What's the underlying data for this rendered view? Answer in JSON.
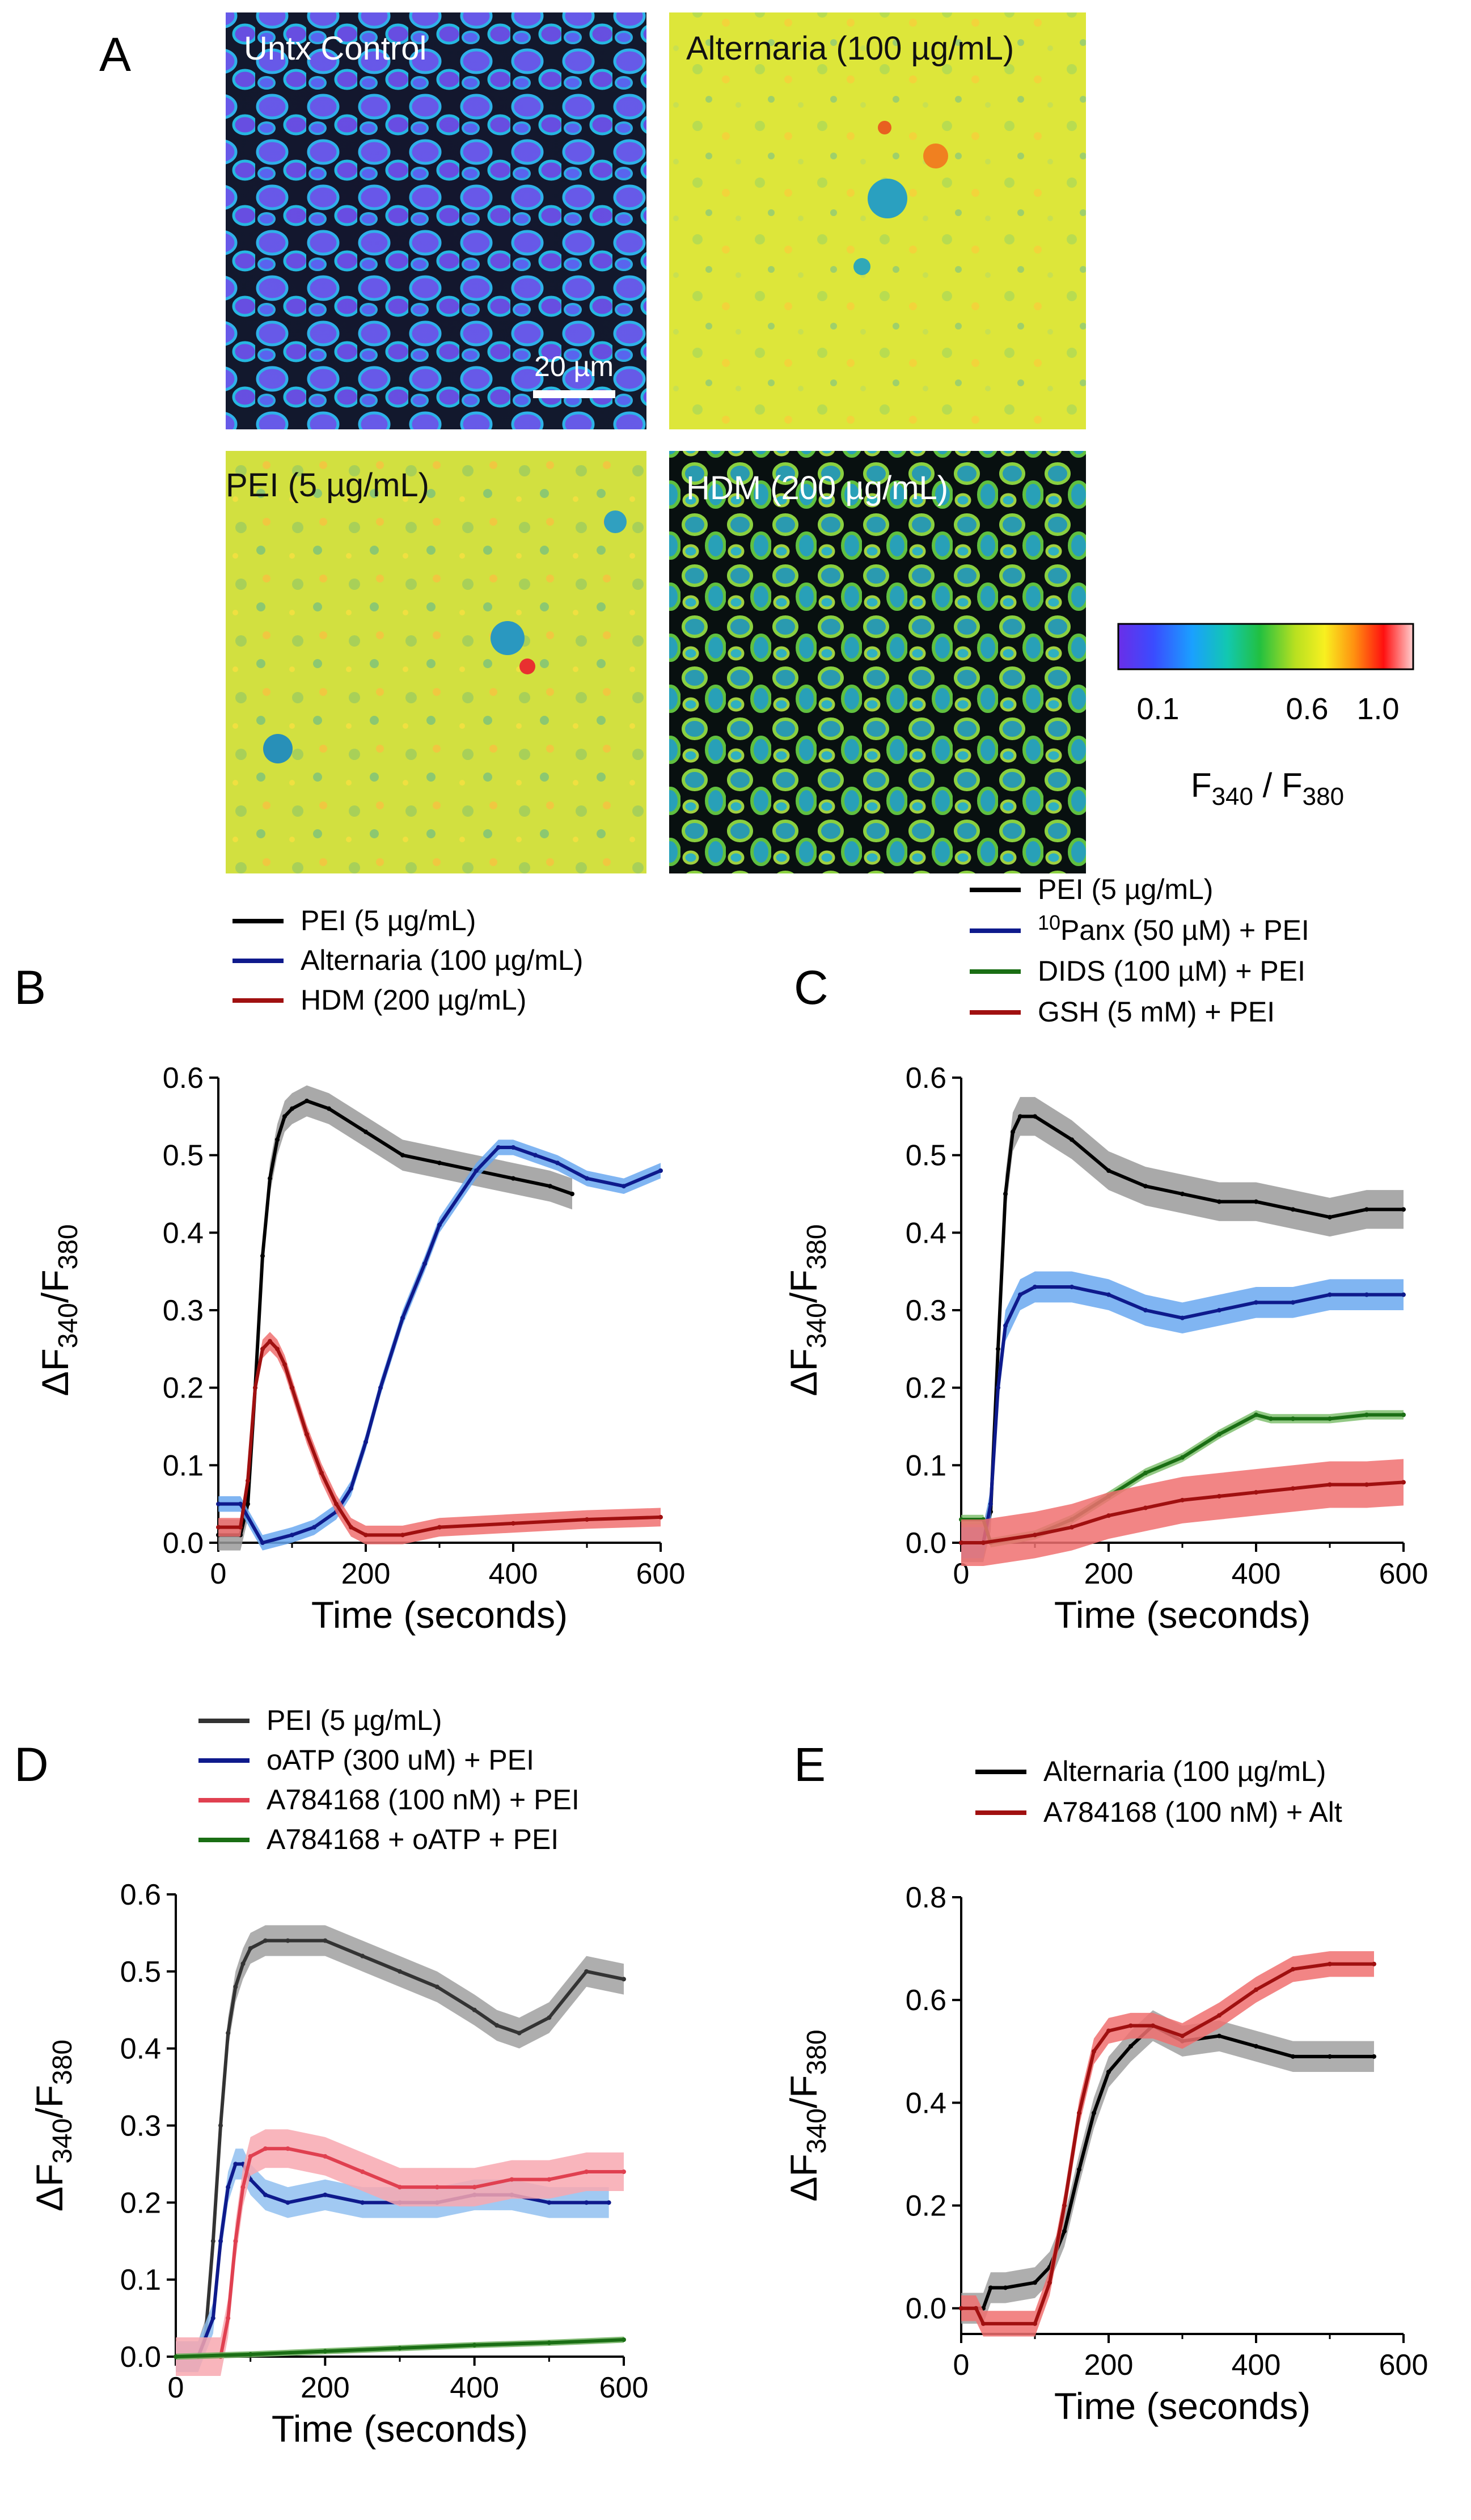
{
  "panel_a": {
    "letter": "A",
    "images": [
      {
        "label": "Untx  Control",
        "style": "control"
      },
      {
        "label": "Alternaria (100 µg/mL)",
        "style": "yellow"
      },
      {
        "label": "PEI (5 µg/mL)",
        "style": "yellow2"
      },
      {
        "label": "HDM (200 µg/mL)",
        "style": "hdm"
      }
    ],
    "scale_bar": "20 µm",
    "colorbar": {
      "ticks": [
        "0.1",
        "0.6",
        "1.0"
      ],
      "label_main": "F",
      "sub1": "340",
      "sep": " / F",
      "sub2": "380",
      "colors": [
        "#6a2ee8",
        "#3a4cff",
        "#1aa0ff",
        "#12c8b0",
        "#22c040",
        "#b8e020",
        "#f8f020",
        "#ff9010",
        "#ff1010",
        "#ffd0d0"
      ]
    }
  },
  "chart_data": [
    {
      "panel": "B",
      "type": "line",
      "xlabel": "Time (seconds)",
      "ylabel_prefix": "ΔF",
      "ylabel_sub1": "340",
      "ylabel_mid": "/F",
      "ylabel_sub2": "380",
      "xlim": [
        0,
        600
      ],
      "ylim": [
        0,
        0.6
      ],
      "xticks": [
        "0",
        "200",
        "400",
        "600"
      ],
      "yticks": [
        "0.0",
        "0.1",
        "0.2",
        "0.3",
        "0.4",
        "0.5",
        "0.6"
      ],
      "series": [
        {
          "name": "PEI (5 µg/mL)",
          "color": "#000000",
          "band": "#9a9a9a",
          "err": 0.02,
          "x": [
            0,
            30,
            40,
            50,
            60,
            70,
            80,
            90,
            100,
            120,
            150,
            200,
            250,
            300,
            350,
            400,
            450,
            480
          ],
          "y": [
            0.01,
            0.01,
            0.05,
            0.2,
            0.37,
            0.47,
            0.52,
            0.55,
            0.56,
            0.57,
            0.56,
            0.53,
            0.5,
            0.49,
            0.48,
            0.47,
            0.46,
            0.45
          ]
        },
        {
          "name": "Alternaria (100 µg/mL)",
          "color": "#0e1a8c",
          "band": "#6aa8f0",
          "err": 0.01,
          "x": [
            0,
            30,
            60,
            100,
            130,
            160,
            180,
            200,
            220,
            250,
            280,
            300,
            350,
            380,
            400,
            430,
            460,
            500,
            550,
            600
          ],
          "y": [
            0.05,
            0.05,
            0.0,
            0.01,
            0.02,
            0.04,
            0.07,
            0.13,
            0.2,
            0.29,
            0.36,
            0.41,
            0.48,
            0.51,
            0.51,
            0.5,
            0.49,
            0.47,
            0.46,
            0.48
          ]
        },
        {
          "name": "HDM (200 µg/mL)",
          "color": "#a01010",
          "band": "#f07070",
          "err": 0.012,
          "x": [
            0,
            30,
            40,
            50,
            60,
            70,
            80,
            90,
            100,
            120,
            140,
            160,
            180,
            200,
            250,
            300,
            400,
            500,
            600
          ],
          "y": [
            0.02,
            0.02,
            0.08,
            0.2,
            0.25,
            0.26,
            0.25,
            0.23,
            0.2,
            0.14,
            0.09,
            0.05,
            0.02,
            0.01,
            0.01,
            0.02,
            0.025,
            0.03,
            0.033
          ]
        }
      ]
    },
    {
      "panel": "C",
      "type": "line",
      "xlabel": "Time (seconds)",
      "ylabel_prefix": "ΔF",
      "ylabel_sub1": "340",
      "ylabel_mid": "/F",
      "ylabel_sub2": "380",
      "xlim": [
        0,
        600
      ],
      "ylim": [
        0,
        0.6
      ],
      "xticks": [
        "0",
        "200",
        "400",
        "600"
      ],
      "yticks": [
        "0.0",
        "0.1",
        "0.2",
        "0.3",
        "0.4",
        "0.5",
        "0.6"
      ],
      "legend_sup": "10",
      "series": [
        {
          "name": "PEI (5 µg/mL)",
          "color": "#000000",
          "band": "#9a9a9a",
          "err": 0.025,
          "x": [
            0,
            30,
            40,
            50,
            60,
            70,
            80,
            100,
            150,
            200,
            250,
            300,
            350,
            400,
            450,
            500,
            550,
            600
          ],
          "y": [
            0.0,
            0.0,
            0.04,
            0.25,
            0.45,
            0.53,
            0.55,
            0.55,
            0.52,
            0.48,
            0.46,
            0.45,
            0.44,
            0.44,
            0.43,
            0.42,
            0.43,
            0.43
          ]
        },
        {
          "name": "Panx (50 µM) + PEI",
          "color": "#0e1a8c",
          "band": "#6aa8f0",
          "err": 0.02,
          "x": [
            0,
            30,
            40,
            50,
            60,
            80,
            100,
            150,
            200,
            250,
            300,
            350,
            400,
            450,
            500,
            550,
            600
          ],
          "y": [
            0.0,
            0.0,
            0.05,
            0.2,
            0.28,
            0.32,
            0.33,
            0.33,
            0.32,
            0.3,
            0.29,
            0.3,
            0.31,
            0.31,
            0.32,
            0.32,
            0.32
          ]
        },
        {
          "name": "DIDS (100 µM) + PEI",
          "color": "#1a6e14",
          "band": "#80c070",
          "err": 0.006,
          "x": [
            0,
            30,
            40,
            100,
            150,
            200,
            250,
            300,
            350,
            400,
            420,
            450,
            500,
            550,
            600
          ],
          "y": [
            0.03,
            0.03,
            0.0,
            0.01,
            0.03,
            0.06,
            0.09,
            0.11,
            0.14,
            0.165,
            0.16,
            0.16,
            0.16,
            0.165,
            0.165
          ]
        },
        {
          "name": "GSH (5 mM) + PEI",
          "color": "#a01010",
          "band": "#f07070",
          "err": 0.03,
          "x": [
            0,
            30,
            100,
            150,
            200,
            250,
            300,
            350,
            400,
            450,
            500,
            550,
            600
          ],
          "y": [
            0.0,
            0.0,
            0.01,
            0.02,
            0.035,
            0.045,
            0.055,
            0.06,
            0.065,
            0.07,
            0.075,
            0.075,
            0.078
          ]
        }
      ]
    },
    {
      "panel": "D",
      "type": "line",
      "xlabel": "Time (seconds)",
      "ylabel_prefix": "ΔF",
      "ylabel_sub1": "340",
      "ylabel_mid": "/F",
      "ylabel_sub2": "380",
      "xlim": [
        0,
        600
      ],
      "ylim": [
        0,
        0.6
      ],
      "xticks": [
        "0",
        "200",
        "400",
        "600"
      ],
      "yticks": [
        "0.0",
        "0.1",
        "0.2",
        "0.3",
        "0.4",
        "0.5",
        "0.6"
      ],
      "series": [
        {
          "name": "PEI (5 µg/mL)",
          "color": "#333333",
          "band": "#a0a0a0",
          "err": 0.02,
          "x": [
            0,
            30,
            40,
            50,
            60,
            70,
            80,
            90,
            100,
            120,
            150,
            200,
            250,
            300,
            350,
            400,
            430,
            460,
            500,
            550,
            600
          ],
          "y": [
            0.0,
            0.0,
            0.03,
            0.15,
            0.3,
            0.42,
            0.48,
            0.51,
            0.53,
            0.54,
            0.54,
            0.54,
            0.52,
            0.5,
            0.48,
            0.45,
            0.43,
            0.42,
            0.44,
            0.5,
            0.49
          ]
        },
        {
          "name": "oATP (300 uM) + PEI",
          "color": "#0e1a8c",
          "band": "#90c0f0",
          "err": 0.02,
          "x": [
            0,
            30,
            50,
            60,
            70,
            80,
            90,
            100,
            120,
            150,
            200,
            250,
            300,
            350,
            400,
            450,
            500,
            550,
            580
          ],
          "y": [
            0.0,
            0.0,
            0.05,
            0.15,
            0.22,
            0.25,
            0.25,
            0.23,
            0.21,
            0.2,
            0.21,
            0.2,
            0.2,
            0.2,
            0.21,
            0.21,
            0.2,
            0.2,
            0.2
          ]
        },
        {
          "name": "A784168 (100 nM) + PEI",
          "color": "#e04050",
          "band": "#f8a8b0",
          "err": 0.025,
          "x": [
            0,
            30,
            60,
            70,
            80,
            90,
            100,
            120,
            150,
            200,
            250,
            300,
            350,
            400,
            450,
            500,
            550,
            600
          ],
          "y": [
            0.0,
            0.0,
            0.0,
            0.05,
            0.15,
            0.22,
            0.26,
            0.27,
            0.27,
            0.26,
            0.24,
            0.22,
            0.22,
            0.22,
            0.23,
            0.23,
            0.24,
            0.24
          ]
        },
        {
          "name": "A784168 + oATP + PEI",
          "color": "#1a6e14",
          "band": "#70b060",
          "err": 0.004,
          "x": [
            0,
            100,
            200,
            300,
            400,
            500,
            600
          ],
          "y": [
            0.0,
            0.003,
            0.007,
            0.011,
            0.015,
            0.018,
            0.022
          ]
        }
      ]
    },
    {
      "panel": "E",
      "type": "line",
      "xlabel": "Time (seconds)",
      "ylabel_prefix": "ΔF",
      "ylabel_sub1": "340",
      "ylabel_mid": "/F",
      "ylabel_sub2": "380",
      "xlim": [
        0,
        600
      ],
      "ylim": [
        -0.05,
        0.8
      ],
      "xticks": [
        "0",
        "200",
        "400",
        "600"
      ],
      "yticks": [
        "0.0",
        "0.2",
        "0.4",
        "0.6",
        "0.8"
      ],
      "ytick_vals": [
        0,
        0.2,
        0.4,
        0.6,
        0.8
      ],
      "series": [
        {
          "name": "Alternaria (100 µg/mL)",
          "color": "#000000",
          "band": "#a0a0a0",
          "err": 0.03,
          "x": [
            0,
            30,
            40,
            60,
            100,
            120,
            140,
            160,
            180,
            200,
            230,
            260,
            300,
            350,
            400,
            450,
            500,
            560
          ],
          "y": [
            0.0,
            0.0,
            0.04,
            0.04,
            0.05,
            0.08,
            0.15,
            0.27,
            0.38,
            0.46,
            0.51,
            0.55,
            0.52,
            0.53,
            0.51,
            0.49,
            0.49,
            0.49
          ]
        },
        {
          "name": "A784168 (100 nM) + Alt",
          "color": "#a01010",
          "band": "#f07070",
          "err": 0.025,
          "x": [
            0,
            20,
            30,
            100,
            120,
            140,
            160,
            180,
            200,
            230,
            260,
            300,
            350,
            400,
            450,
            500,
            560
          ],
          "y": [
            0.0,
            0.0,
            -0.03,
            -0.03,
            0.05,
            0.2,
            0.38,
            0.5,
            0.54,
            0.55,
            0.55,
            0.53,
            0.57,
            0.62,
            0.66,
            0.67,
            0.67
          ]
        }
      ]
    }
  ]
}
